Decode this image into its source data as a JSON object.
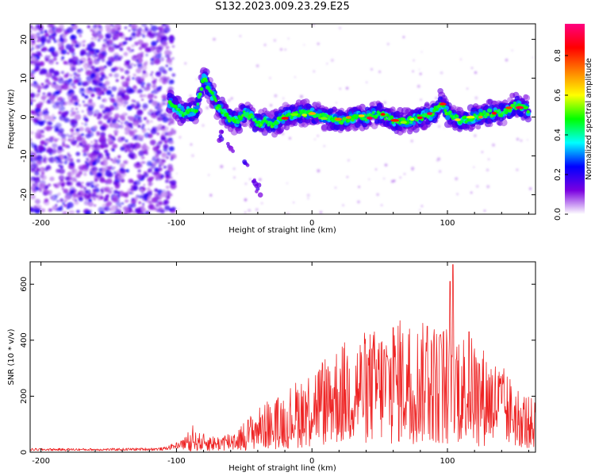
{
  "figure": {
    "title": "S132.2023.009.23.29.E25"
  },
  "chart_data": [
    {
      "type": "heatmap",
      "xlabel": "Height of straight line (km)",
      "ylabel": "Frequency (Hz)",
      "xlim": [
        -208,
        165
      ],
      "ylim": [
        -25,
        24
      ],
      "x_ticks": [
        -200,
        -100,
        0,
        100
      ],
      "y_ticks": [
        -20,
        -10,
        0,
        10,
        20
      ],
      "colorbar": {
        "label": "Normalized spectral amplitude",
        "range": [
          0,
          0.96
        ],
        "ticks": [
          "0.0",
          "0.2",
          "0.4",
          "0.6",
          "0.8"
        ],
        "tick_values": [
          0.0,
          0.2,
          0.4,
          0.6,
          0.8
        ],
        "colors": [
          "#ffffff",
          "#7a00e0",
          "#0000ff",
          "#00ffff",
          "#00ff00",
          "#ffff00",
          "#ff8000",
          "#ff0000",
          "#ff0080"
        ]
      },
      "ridge": {
        "x": [
          -105,
          -95,
          -85,
          -80,
          -75,
          -70,
          -65,
          -60,
          -55,
          -50,
          -45,
          -40,
          -35,
          -30,
          -20,
          -10,
          0,
          10,
          20,
          30,
          40,
          50,
          60,
          70,
          80,
          90,
          95,
          100,
          110,
          120,
          130,
          140,
          150,
          160
        ],
        "y": [
          4,
          1,
          2,
          10,
          7,
          3,
          1,
          -1,
          -1,
          1,
          0,
          -2,
          -1,
          -2,
          0,
          1,
          1,
          0,
          -1,
          0,
          0,
          1,
          -1,
          -1,
          0,
          1,
          4,
          1,
          -1,
          0,
          1,
          1,
          3,
          2
        ]
      }
    },
    {
      "type": "line",
      "xlabel": "Height of straight line (km)",
      "ylabel": "SNR (10 * v/v)",
      "xlim": [
        -208,
        165
      ],
      "ylim": [
        0,
        680
      ],
      "x_ticks": [
        -200,
        -100,
        0,
        100
      ],
      "y_ticks": [
        0,
        200,
        400,
        600
      ],
      "color": "#ee2222",
      "envelope": {
        "x": [
          -208,
          -150,
          -110,
          -100,
          -90,
          -70,
          -55,
          -40,
          -30,
          -20,
          0,
          20,
          40,
          60,
          80,
          90,
          100,
          104,
          110,
          120,
          130,
          140,
          150,
          165
        ],
        "y": [
          10,
          10,
          12,
          25,
          40,
          30,
          45,
          85,
          95,
          115,
          165,
          205,
          230,
          240,
          245,
          245,
          240,
          260,
          230,
          215,
          190,
          165,
          130,
          95
        ]
      },
      "peaks": [
        {
          "x": 104,
          "y": 670
        },
        {
          "x": 102,
          "y": 610
        },
        {
          "x": 65,
          "y": 470
        },
        {
          "x": 60,
          "y": 445
        },
        {
          "x": 85,
          "y": 450
        },
        {
          "x": 72,
          "y": 440
        },
        {
          "x": 116,
          "y": 430
        },
        {
          "x": 95,
          "y": 420
        },
        {
          "x": -88,
          "y": 95
        },
        {
          "x": -33,
          "y": 180
        }
      ]
    }
  ]
}
